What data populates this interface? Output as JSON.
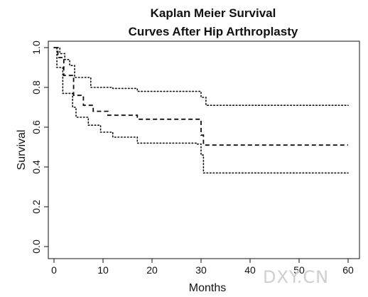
{
  "chart_data": {
    "type": "line",
    "title_lines": [
      "Kaplan Meier Survival",
      "Curves After Hip Arthroplasty"
    ],
    "xlabel": "Months",
    "ylabel": "Survival",
    "xlim": [
      0,
      60
    ],
    "ylim": [
      0,
      1
    ],
    "x_ticks": [
      0,
      10,
      20,
      30,
      40,
      50,
      60
    ],
    "y_ticks": [
      0.0,
      0.2,
      0.4,
      0.6,
      0.8,
      1.0
    ],
    "x_tick_labels": [
      "0",
      "10",
      "20",
      "30",
      "40",
      "50",
      "60"
    ],
    "y_tick_labels": [
      "0.0",
      "0.2",
      "0.4",
      "0.6",
      "0.8",
      "1.0"
    ],
    "grid": false,
    "series": [
      {
        "role": "upper confidence band",
        "line_style": "dotted",
        "x": [
          0,
          1.2,
          1.2,
          2.2,
          2.2,
          3.2,
          3.2,
          4.2,
          4.2,
          7.5,
          7.5,
          12,
          12,
          17,
          17,
          30,
          30,
          31,
          31,
          60
        ],
        "y": [
          1.0,
          1.0,
          0.97,
          0.97,
          0.94,
          0.94,
          0.91,
          0.91,
          0.85,
          0.85,
          0.8,
          0.8,
          0.795,
          0.795,
          0.78,
          0.78,
          0.75,
          0.75,
          0.71,
          0.71
        ]
      },
      {
        "role": "survival estimate",
        "line_style": "dashed",
        "x": [
          0,
          0.8,
          0.8,
          2.0,
          2.0,
          4.0,
          4.0,
          6.0,
          6.0,
          8.0,
          8.0,
          11.0,
          11.0,
          17.0,
          17.0,
          30.0,
          30.0,
          30.5,
          30.5,
          60
        ],
        "y": [
          1.0,
          1.0,
          0.95,
          0.95,
          0.86,
          0.86,
          0.76,
          0.76,
          0.71,
          0.71,
          0.68,
          0.68,
          0.66,
          0.66,
          0.64,
          0.64,
          0.56,
          0.56,
          0.51,
          0.51
        ]
      },
      {
        "role": "lower confidence band",
        "line_style": "dotted",
        "x": [
          0,
          0.6,
          0.6,
          1.8,
          1.8,
          3.8,
          3.8,
          4.5,
          4.5,
          7.0,
          7.0,
          9.5,
          9.5,
          12.0,
          12.0,
          17.0,
          17.0,
          29.0,
          29.0,
          30.0,
          30.0,
          30.5,
          30.5,
          60
        ],
        "y": [
          1.0,
          1.0,
          0.9,
          0.9,
          0.77,
          0.77,
          0.7,
          0.7,
          0.65,
          0.65,
          0.61,
          0.61,
          0.575,
          0.575,
          0.55,
          0.55,
          0.52,
          0.52,
          0.515,
          0.515,
          0.46,
          0.46,
          0.37,
          0.37
        ]
      }
    ]
  },
  "watermark": "DXY.CN"
}
